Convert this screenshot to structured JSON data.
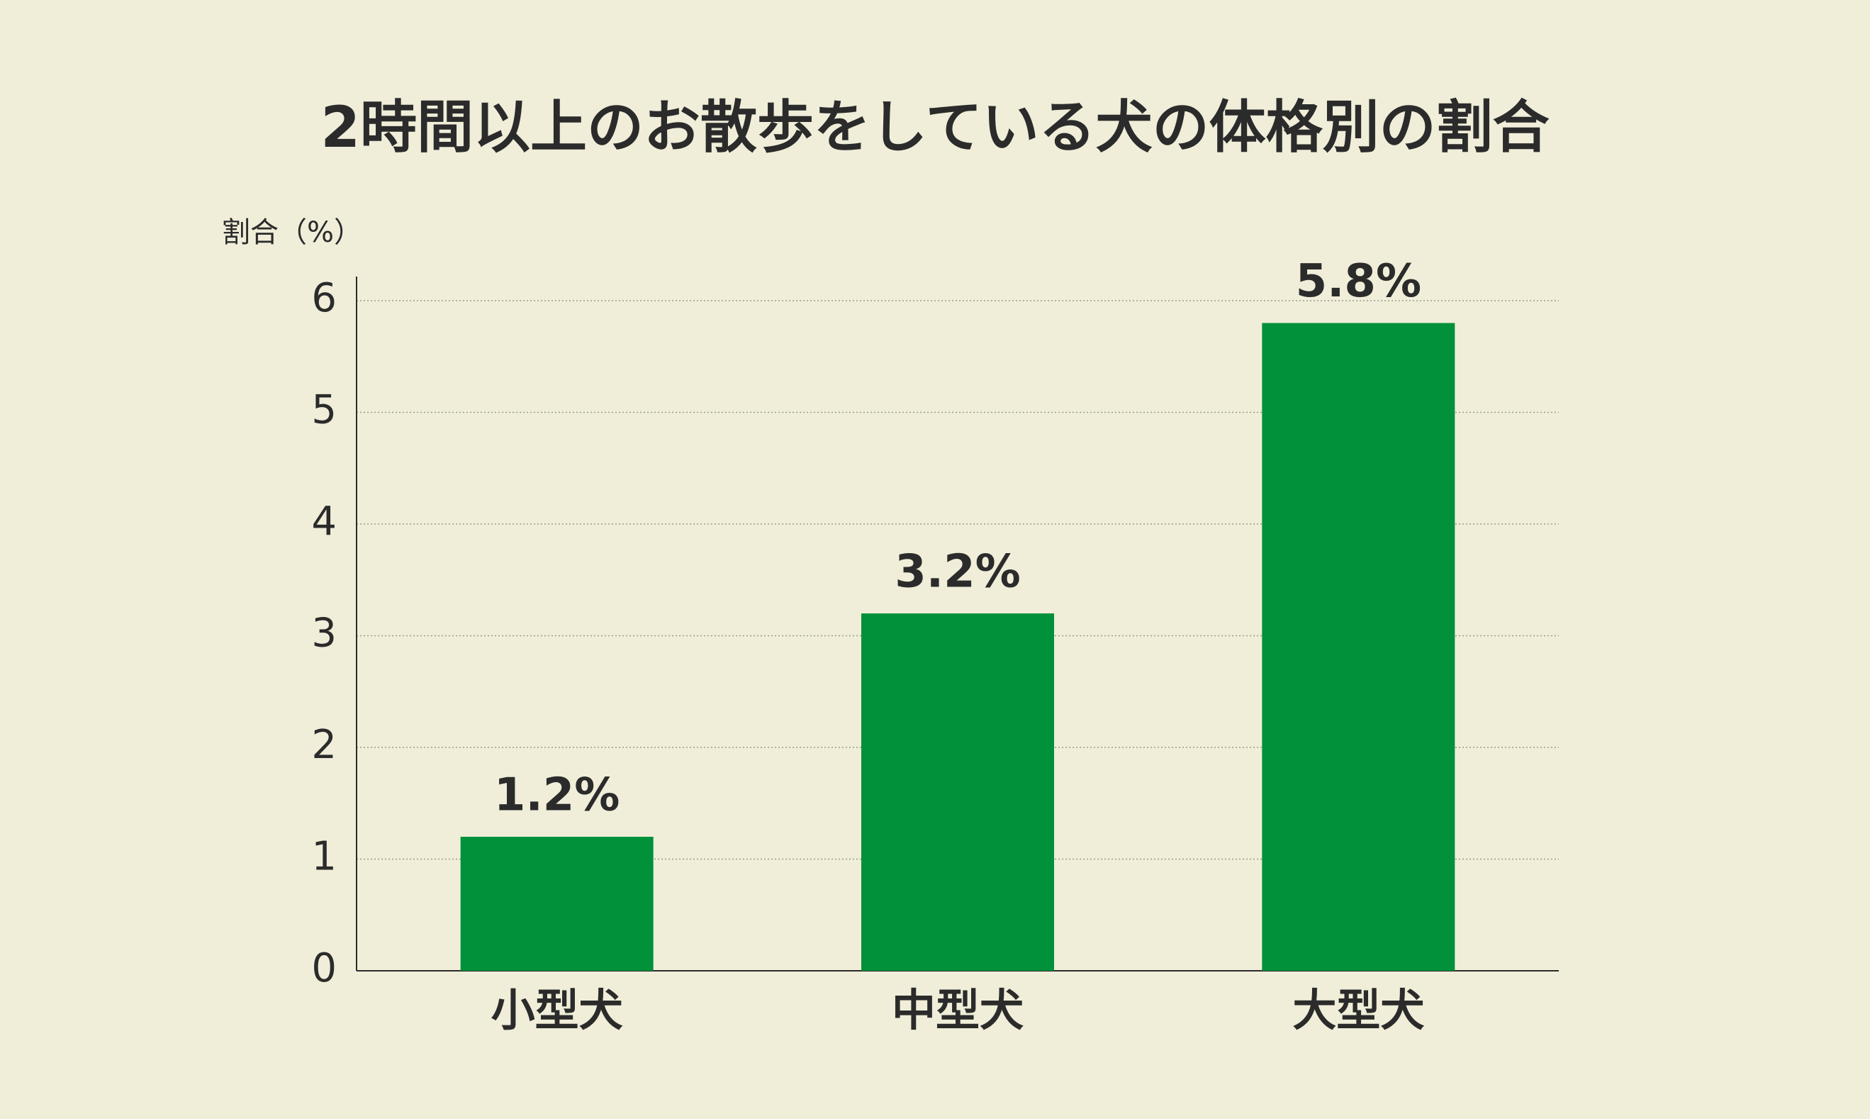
{
  "chart_data": {
    "type": "bar",
    "title": "2時間以上のお散歩をしている犬の体格別の割合",
    "y_label": "割合（%）",
    "categories": [
      "小型犬",
      "中型犬",
      "大型犬"
    ],
    "values": [
      1.2,
      3.2,
      5.8
    ],
    "value_labels": [
      "1.2%",
      "3.2%",
      "5.8%"
    ],
    "color": "#00913a",
    "ylim": [
      0,
      6
    ],
    "yticks": [
      0,
      1,
      2,
      3,
      4,
      5,
      6
    ],
    "grid": true
  }
}
